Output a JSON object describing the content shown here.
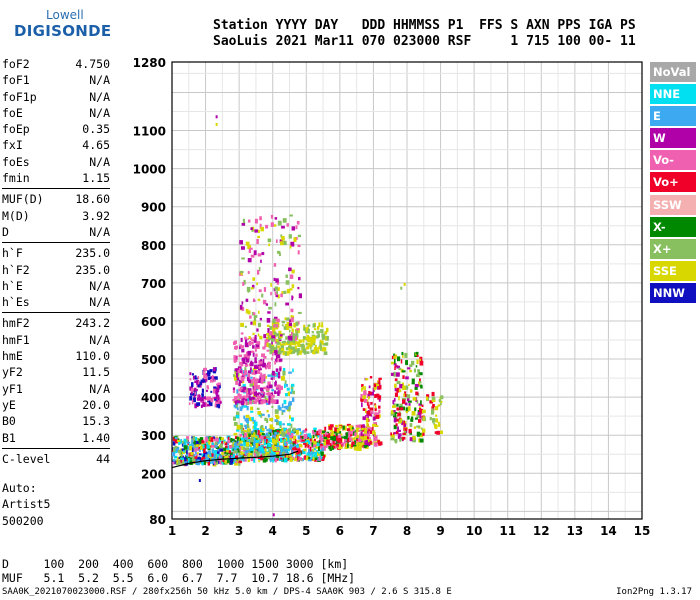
{
  "logo": {
    "top": "Lowell",
    "bottom": "DIGISONDE"
  },
  "header": {
    "line1": "Station YYYY DAY   DDD HHMMSS P1  FFS S AXN PPS IGA PS",
    "line2": "SaoLuis 2021 Mar11 070 023000 RSF     1 715 100 00- 11"
  },
  "params": [
    [
      {
        "k": "foF2",
        "v": "4.750"
      },
      {
        "k": "foF1",
        "v": "N/A"
      },
      {
        "k": "foF1p",
        "v": "N/A"
      },
      {
        "k": "foE",
        "v": "N/A"
      },
      {
        "k": "foEp",
        "v": "0.35"
      },
      {
        "k": "fxI",
        "v": "4.65"
      },
      {
        "k": "foEs",
        "v": "N/A"
      },
      {
        "k": "fmin",
        "v": "1.15"
      }
    ],
    [
      {
        "k": "MUF(D)",
        "v": "18.60"
      },
      {
        "k": "M(D)",
        "v": "3.92"
      },
      {
        "k": "D",
        "v": "N/A"
      }
    ],
    [
      {
        "k": "h`F",
        "v": "235.0"
      },
      {
        "k": "h`F2",
        "v": "235.0"
      },
      {
        "k": "h`E",
        "v": "N/A"
      },
      {
        "k": "h`Es",
        "v": "N/A"
      }
    ],
    [
      {
        "k": "hmF2",
        "v": "243.2"
      },
      {
        "k": "hmF1",
        "v": "N/A"
      },
      {
        "k": "hmE",
        "v": "110.0"
      },
      {
        "k": "yF2",
        "v": "11.5"
      },
      {
        "k": "yF1",
        "v": "N/A"
      },
      {
        "k": "yE",
        "v": "20.0"
      },
      {
        "k": "B0",
        "v": "15.3"
      },
      {
        "k": "B1",
        "v": "1.40"
      }
    ],
    [
      {
        "k": "C-level",
        "v": "44"
      }
    ]
  ],
  "auto": {
    "line1": "Auto:",
    "line2": "Artist5",
    "line3": "500200"
  },
  "legend": [
    {
      "label": "NoVal",
      "color": "#a8a8a8"
    },
    {
      "label": "NNE",
      "color": "#00e0f0"
    },
    {
      "label": "E",
      "color": "#3da9f0"
    },
    {
      "label": "W",
      "color": "#b000a8"
    },
    {
      "label": "Vo-",
      "color": "#f060b0"
    },
    {
      "label": "Vo+",
      "color": "#f00028"
    },
    {
      "label": "SSW",
      "color": "#f4b0b0"
    },
    {
      "label": "X-",
      "color": "#008800"
    },
    {
      "label": "X+",
      "color": "#88c060"
    },
    {
      "label": "SSE",
      "color": "#d8d800"
    },
    {
      "label": "NNW",
      "color": "#1010c0"
    }
  ],
  "footer": {
    "line1": "D     100  200  400  600  800  1000 1500 3000 [km]",
    "line2": "MUF   5.1  5.2  5.5  6.0  6.7  7.7  10.7 18.6 [MHz]"
  },
  "bottom": {
    "left": "SAA0K_2021070023000.RSF / 280fx256h 50 kHz 5.0 km / DPS-4 SAA0K 903 / 2.6 S 315.8 E",
    "version": "Ion2Png 1.3.17"
  },
  "chart_data": {
    "type": "scatter",
    "xlim": [
      1,
      15
    ],
    "ylim": [
      80,
      1280
    ],
    "xticks": [
      1,
      2,
      3,
      4,
      5,
      6,
      7,
      8,
      9,
      10,
      11,
      12,
      13,
      14,
      15
    ],
    "yticks": [
      80,
      200,
      300,
      400,
      500,
      600,
      700,
      800,
      900,
      1000,
      1100,
      1280
    ],
    "ytick_labels": [
      "80",
      "200",
      "300",
      "400",
      "500",
      "600",
      "700",
      "800",
      "900",
      "1000",
      "1100",
      "1280"
    ],
    "grid": true,
    "legend_position": "right",
    "clusters": [
      {
        "x": [
          1.0,
          3.0
        ],
        "y": [
          230,
          300
        ],
        "n": 420,
        "colors": [
          "#f00028",
          "#f060b0",
          "#00e0f0",
          "#3da9f0",
          "#d8d800",
          "#008800",
          "#88c060",
          "#1010c0"
        ]
      },
      {
        "x": [
          3.0,
          5.5
        ],
        "y": [
          240,
          320
        ],
        "n": 520,
        "colors": [
          "#f00028",
          "#d8d800",
          "#f060b0",
          "#3da9f0",
          "#008800",
          "#00e0f0"
        ]
      },
      {
        "x": [
          5.5,
          6.8
        ],
        "y": [
          270,
          330
        ],
        "n": 220,
        "colors": [
          "#f00028",
          "#d8d800",
          "#f060b0",
          "#008800"
        ]
      },
      {
        "x": [
          2.8,
          4.6
        ],
        "y": [
          250,
          480
        ],
        "n": 300,
        "colors": [
          "#d8d800",
          "#88c060",
          "#00e0f0",
          "#3da9f0"
        ]
      },
      {
        "x": [
          2.8,
          4.2
        ],
        "y": [
          390,
          560
        ],
        "n": 260,
        "colors": [
          "#b000a8",
          "#f060b0"
        ]
      },
      {
        "x": [
          1.5,
          2.4
        ],
        "y": [
          380,
          480
        ],
        "n": 120,
        "colors": [
          "#1010c0",
          "#b000a8",
          "#f060b0"
        ]
      },
      {
        "x": [
          3.8,
          5.6
        ],
        "y": [
          520,
          600
        ],
        "n": 200,
        "colors": [
          "#d8d800",
          "#88c060"
        ]
      },
      {
        "x": [
          3.0,
          4.8
        ],
        "y": [
          560,
          880
        ],
        "n": 180,
        "colors": [
          "#b000a8",
          "#f060b0",
          "#d8d800",
          "#88c060"
        ]
      },
      {
        "x": [
          6.6,
          7.2
        ],
        "y": [
          280,
          460
        ],
        "n": 130,
        "colors": [
          "#f00028",
          "#b000a8",
          "#d8d800",
          "#f060b0"
        ]
      },
      {
        "x": [
          7.5,
          8.4
        ],
        "y": [
          290,
          520
        ],
        "n": 180,
        "colors": [
          "#d8d800",
          "#f00028",
          "#008800",
          "#88c060",
          "#b000a8"
        ]
      },
      {
        "x": [
          8.4,
          9.0
        ],
        "y": [
          310,
          420
        ],
        "n": 40,
        "colors": [
          "#d8d800",
          "#88c060",
          "#f00028"
        ]
      }
    ],
    "points": [
      {
        "x": 2.3,
        "y": 1140,
        "color": "#b000a8"
      },
      {
        "x": 2.3,
        "y": 1120,
        "color": "#d8d800"
      },
      {
        "x": 1.8,
        "y": 185,
        "color": "#1010c0"
      },
      {
        "x": 4.0,
        "y": 95,
        "color": "#b000a8"
      },
      {
        "x": 7.9,
        "y": 700,
        "color": "#d8d800"
      },
      {
        "x": 7.8,
        "y": 690,
        "color": "#88c060"
      }
    ],
    "trace": {
      "color": "#000000",
      "x": [
        1.0,
        1.5,
        2.0,
        2.5,
        3.0,
        3.5,
        4.0,
        4.5,
        4.75
      ],
      "y": [
        215,
        226,
        233,
        237,
        240,
        242,
        245,
        250,
        258
      ]
    }
  }
}
